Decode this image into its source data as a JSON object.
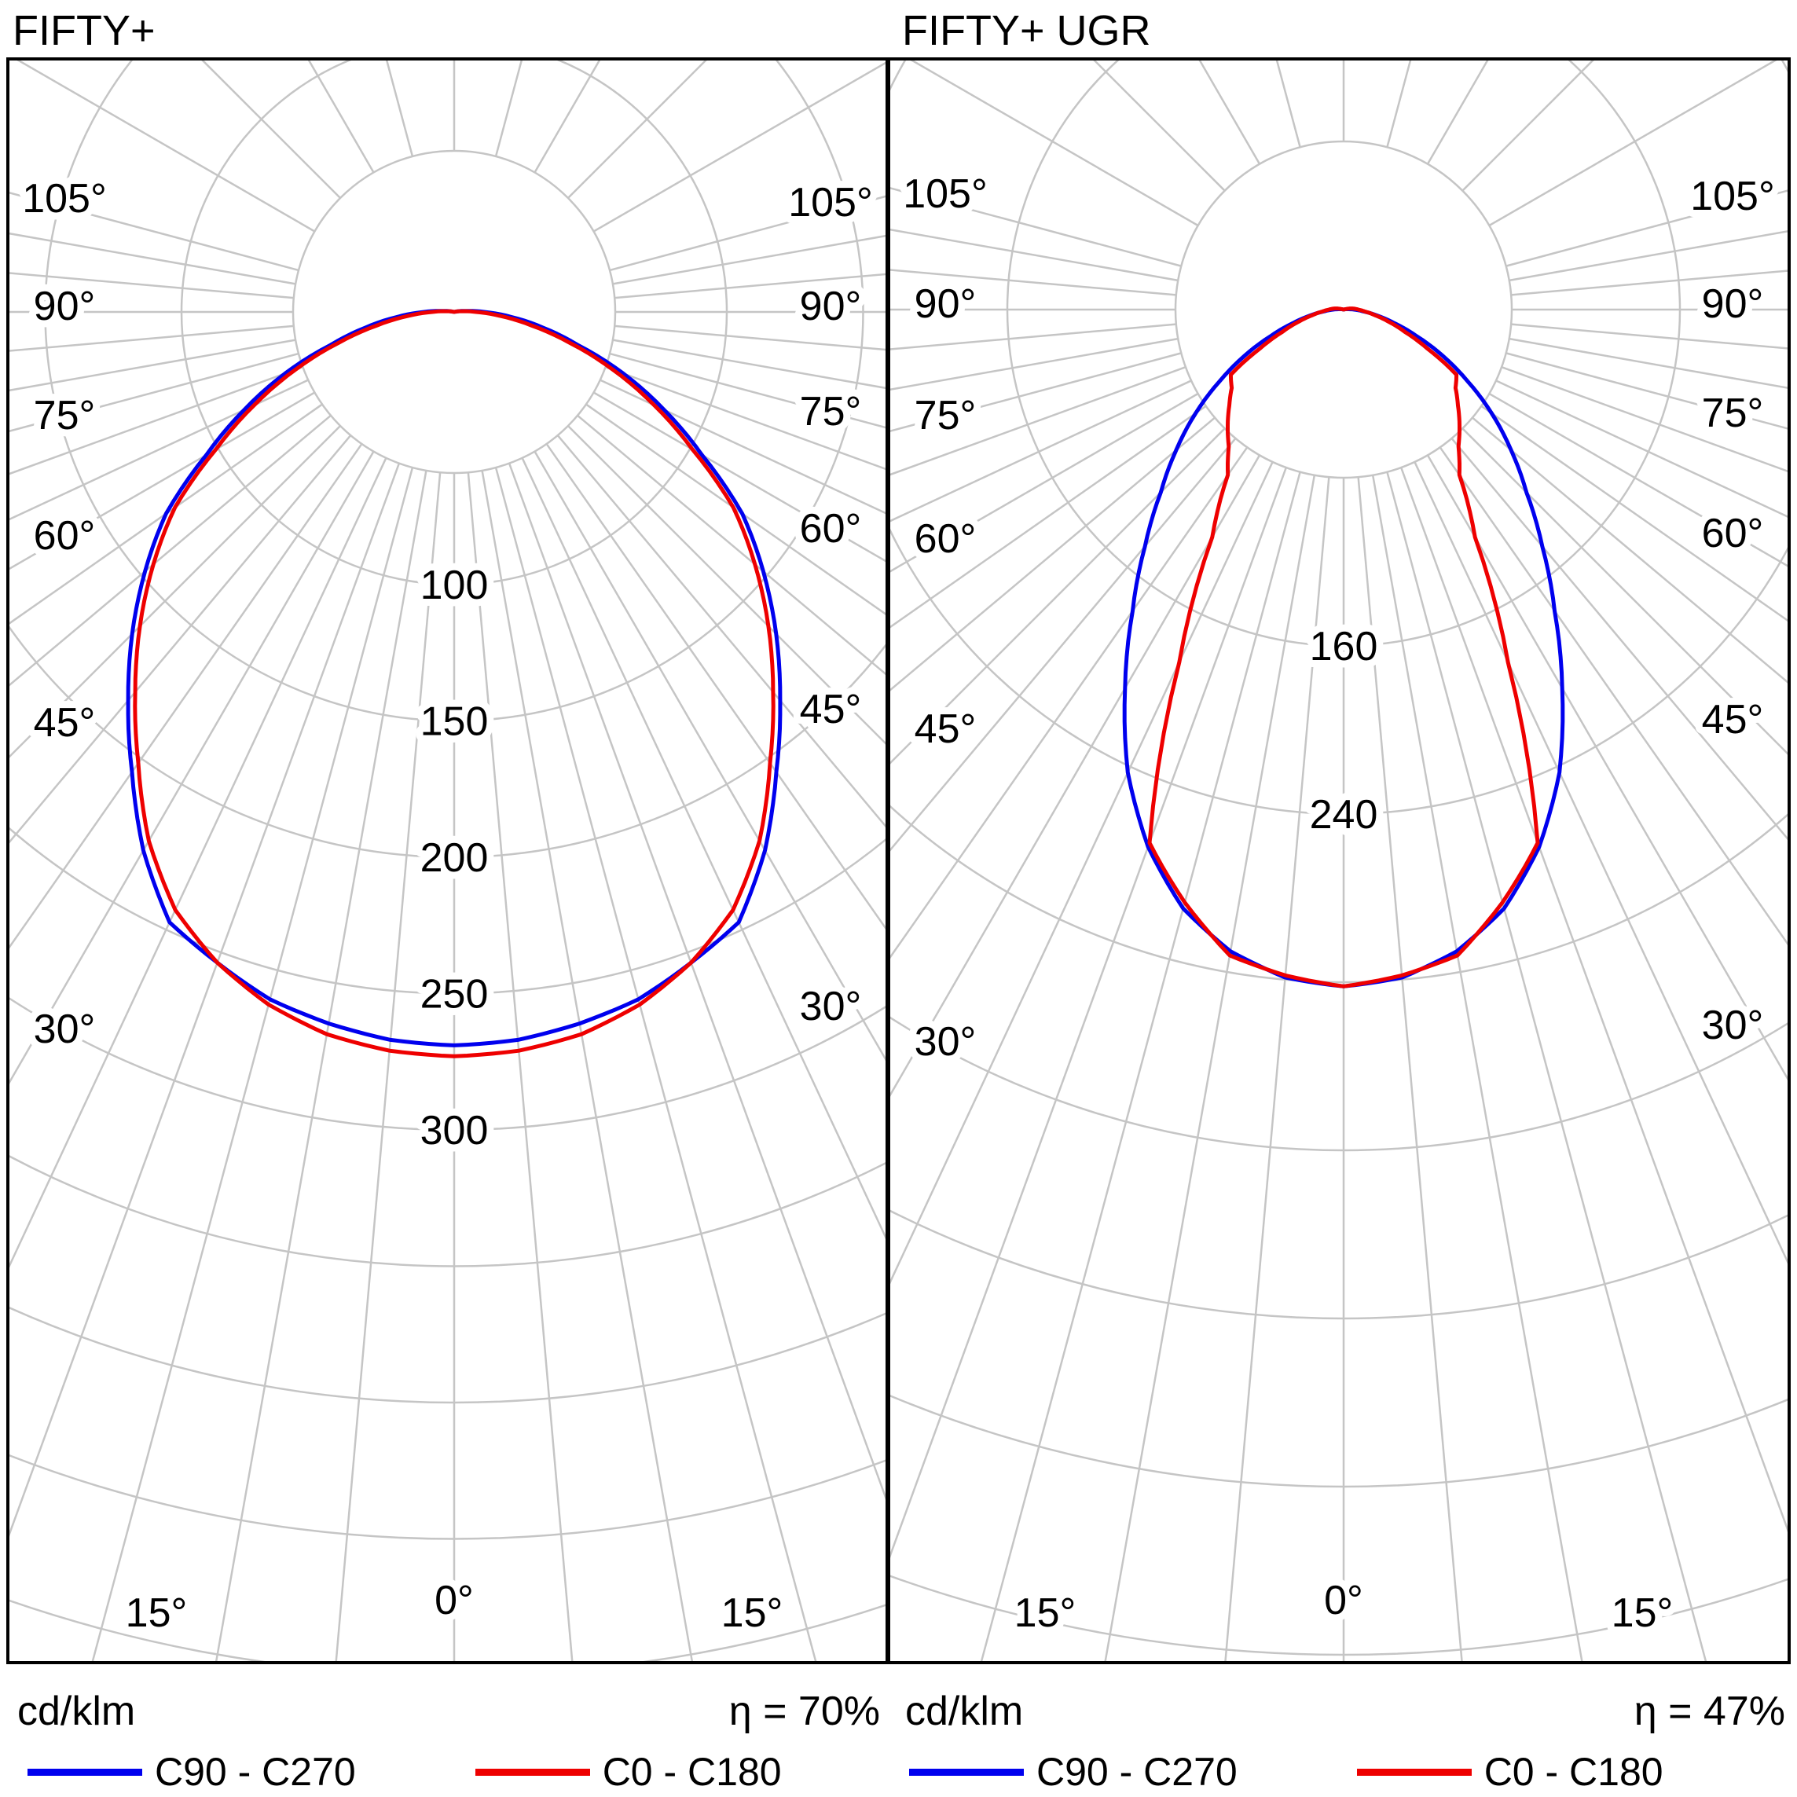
{
  "page": {
    "background": "#ffffff"
  },
  "colors": {
    "c90": "#0000ee",
    "c0": "#ee0000",
    "grid": "#c5c5c5",
    "border": "#000000",
    "text": "#000000"
  },
  "plots": [
    {
      "title": "FIFTY+",
      "unit": "cd/klm",
      "efficiency": "η = 70%",
      "legend": [
        {
          "name": "C90 - C270",
          "color": "#0000ee"
        },
        {
          "name": "C0 - C180",
          "color": "#ee0000"
        }
      ],
      "chart_data": {
        "type": "polar_line",
        "title": "FIFTY+",
        "angle_unit": "deg",
        "zero_direction": "down",
        "angle_ticks": [
          0,
          15,
          30,
          45,
          60,
          75,
          90,
          105
        ],
        "tick_suffix": "°",
        "ring_values": [
          100,
          150,
          200,
          250,
          300
        ],
        "ring_step": 50,
        "radial_unit": "cd/klm",
        "efficiency_percent": 70,
        "angles": [
          0,
          5,
          10,
          15,
          20,
          25,
          30,
          35,
          40,
          45,
          50,
          55,
          60,
          65,
          70,
          75,
          80,
          85,
          90,
          95,
          100,
          105
        ],
        "series": [
          {
            "name": "C90 - C270",
            "color": "#0000ee",
            "values": [
              269,
              268,
              265,
              261,
              254,
              247,
              228,
              206,
              186,
              167,
              148,
              129,
              105,
              85,
              66,
              47,
              33,
              21,
              11,
              4,
              1,
              0
            ]
          },
          {
            "name": "C0 - C180",
            "color": "#ee0000",
            "values": [
              273,
              272,
              269,
              263,
              254,
              242,
              224,
              202,
              182,
              163,
              144,
              125,
              101,
              81,
              62,
              44,
              29,
              17,
              8,
              3,
              1,
              0
            ]
          }
        ]
      }
    },
    {
      "title": "FIFTY+ UGR",
      "unit": "cd/klm",
      "efficiency": "η = 47%",
      "legend": [
        {
          "name": "C90 - C270",
          "color": "#0000ee"
        },
        {
          "name": "C0 - C180",
          "color": "#ee0000"
        }
      ],
      "chart_data": {
        "type": "polar_line",
        "title": "FIFTY+ UGR",
        "angle_unit": "deg",
        "zero_direction": "down",
        "angle_ticks": [
          0,
          15,
          30,
          45,
          60,
          75,
          90,
          105
        ],
        "tick_suffix": "°",
        "ring_values": [
          160,
          240
        ],
        "ring_step": 80,
        "radial_unit": "cd/klm",
        "efficiency_percent": 47,
        "angles": [
          0,
          5,
          10,
          15,
          20,
          25,
          30,
          35,
          40,
          45,
          50,
          55,
          60,
          65,
          70,
          75,
          80,
          85,
          90,
          95,
          100,
          105
        ],
        "series": [
          {
            "name": "C90 - C270",
            "color": "#0000ee",
            "values": [
              322,
              319,
              310,
              295,
              272,
              243,
              208,
              175,
              147,
              123,
              104,
              86,
              68,
              52,
              37,
              25,
              16,
              9,
              5,
              2,
              1,
              0
            ]
          },
          {
            "name": "C0 - C180",
            "color": "#ee0000",
            "values": [
              322,
              318,
              312,
              292,
              270,
              185,
              125,
              96,
              85,
              78,
              71,
              65,
              62,
              44,
              31,
              22,
              15,
              10,
              7,
              5,
              3,
              0
            ]
          }
        ]
      }
    }
  ]
}
